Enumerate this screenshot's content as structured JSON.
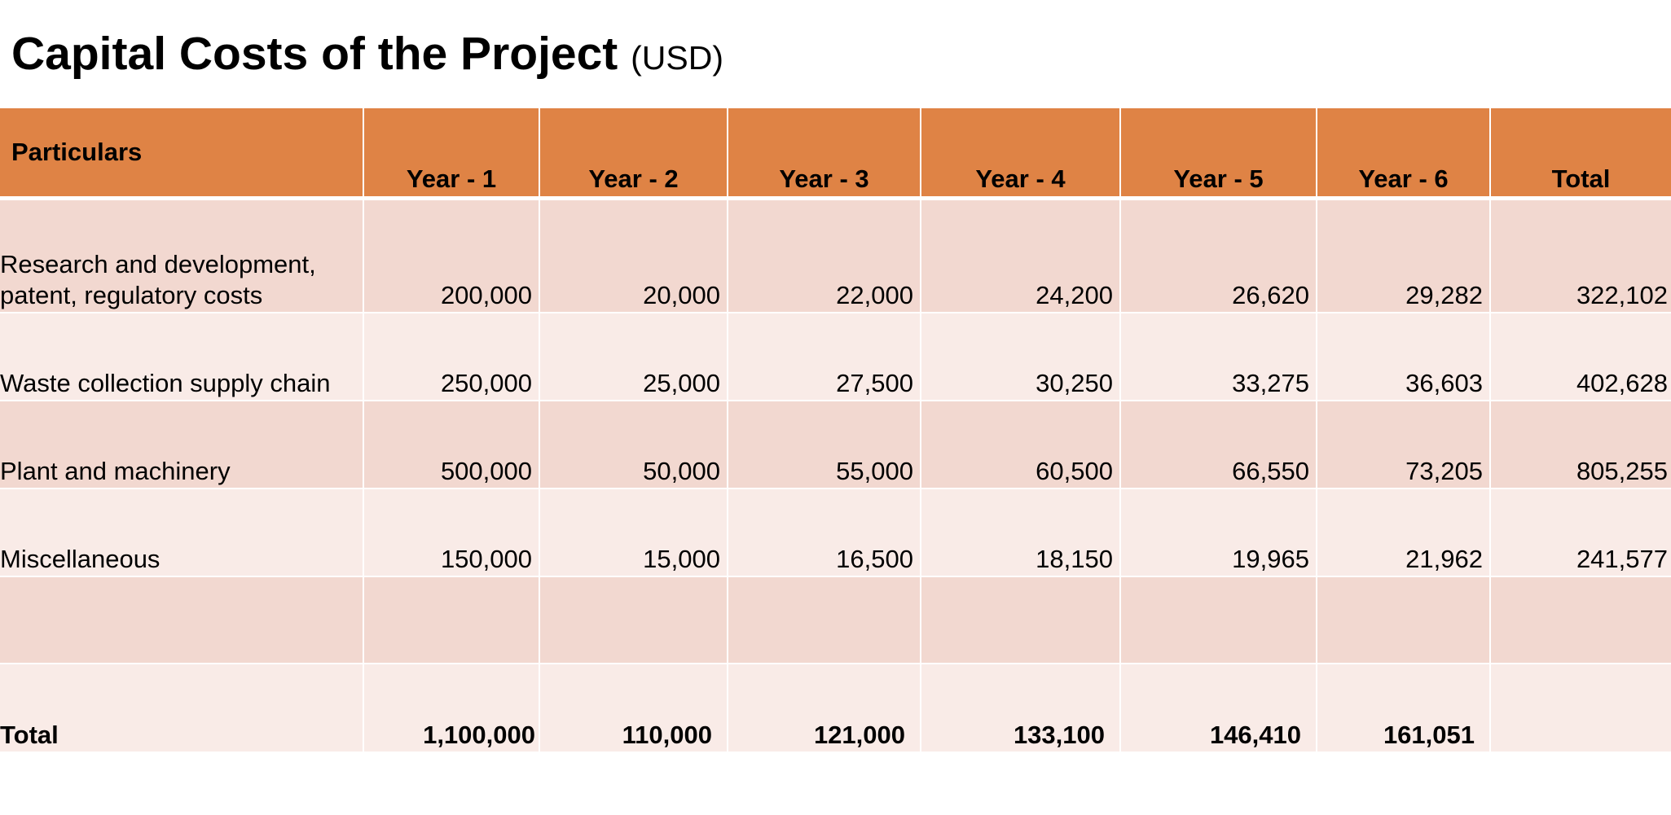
{
  "title": {
    "main": "Capital Costs of the Project",
    "unit": "(USD)"
  },
  "table": {
    "columns": [
      "Particulars",
      "Year - 1",
      "Year - 2",
      "Year - 3",
      "Year - 4",
      "Year - 5",
      "Year - 6",
      "Total"
    ],
    "rows": [
      {
        "label": "Research and development, patent, regulatory costs",
        "values": [
          "200,000",
          "20,000",
          "22,000",
          "24,200",
          "26,620",
          "29,282",
          "322,102"
        ]
      },
      {
        "label": "Waste collection supply chain",
        "values": [
          "250,000",
          "25,000",
          "27,500",
          "30,250",
          "33,275",
          "36,603",
          "402,628"
        ]
      },
      {
        "label": "Plant and machinery",
        "values": [
          "500,000",
          "50,000",
          "55,000",
          "60,500",
          "66,550",
          "73,205",
          "805,255"
        ]
      },
      {
        "label": "Miscellaneous",
        "values": [
          "150,000",
          "15,000",
          "16,500",
          "18,150",
          "19,965",
          "21,962",
          "241,577"
        ]
      }
    ],
    "total_row": {
      "label": "Total",
      "values": [
        "1,100,000",
        "110,000",
        "121,000",
        "133,100",
        "146,410",
        "161,051",
        ""
      ]
    }
  },
  "colors": {
    "header": "#df8345",
    "row_dark": "#f2d8d0",
    "row_light": "#f9ebe7"
  }
}
